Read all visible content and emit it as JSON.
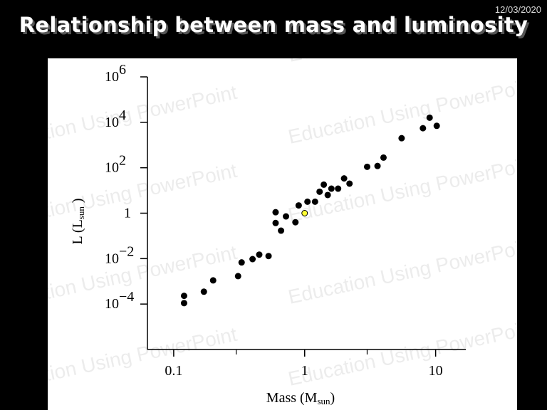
{
  "header": {
    "date": "12/03/2020",
    "title": "Relationship between mass and luminosity"
  },
  "watermark": "Education Using PowerPoint",
  "colors": {
    "background": "#000000",
    "panel": "#ffffff",
    "point": "#000000",
    "sun_point": "#ffff33"
  },
  "chart_data": {
    "type": "scatter",
    "xscale": "log",
    "yscale": "log",
    "xlim": [
      0.063,
      17
    ],
    "ylim": [
      1e-06,
      1000000
    ],
    "xlabel": {
      "main": "Mass  (M",
      "sub": "sun",
      "tail": ")"
    },
    "ylabel": {
      "main": "L  (L",
      "sub": "sun",
      "tail": " )"
    },
    "xticks": [
      {
        "value": 0.1,
        "label": "0.1"
      },
      {
        "value": 1,
        "label": "1"
      },
      {
        "value": 10,
        "label": "10"
      }
    ],
    "yticks": [
      {
        "value": 0.0001,
        "base": "10",
        "exp": "−4"
      },
      {
        "value": 0.01,
        "base": "10",
        "exp": "−2"
      },
      {
        "value": 1,
        "base": "1",
        "exp": ""
      },
      {
        "value": 100,
        "base": "10",
        "exp": "2"
      },
      {
        "value": 10000,
        "base": "10",
        "exp": "4"
      },
      {
        "value": 1000000,
        "base": "10",
        "exp": "6"
      }
    ],
    "grid": false,
    "series": [
      {
        "values": [
          {
            "x": 0.12,
            "y": 0.00023
          },
          {
            "x": 0.12,
            "y": 0.00011
          },
          {
            "x": 0.17,
            "y": 0.00035
          },
          {
            "x": 0.2,
            "y": 0.0011
          },
          {
            "x": 0.31,
            "y": 0.0017
          },
          {
            "x": 0.33,
            "y": 0.0068
          },
          {
            "x": 0.4,
            "y": 0.0095
          },
          {
            "x": 0.45,
            "y": 0.015
          },
          {
            "x": 0.53,
            "y": 0.013
          },
          {
            "x": 0.6,
            "y": 0.37
          },
          {
            "x": 0.6,
            "y": 1.1
          },
          {
            "x": 0.66,
            "y": 0.17
          },
          {
            "x": 0.72,
            "y": 0.72
          },
          {
            "x": 0.85,
            "y": 0.4
          },
          {
            "x": 0.9,
            "y": 2.2
          },
          {
            "x": 1.05,
            "y": 3.2
          },
          {
            "x": 1.2,
            "y": 3.2
          },
          {
            "x": 1.3,
            "y": 8.8
          },
          {
            "x": 1.4,
            "y": 18
          },
          {
            "x": 1.5,
            "y": 6.3
          },
          {
            "x": 1.6,
            "y": 12
          },
          {
            "x": 1.8,
            "y": 12
          },
          {
            "x": 2.0,
            "y": 34
          },
          {
            "x": 2.2,
            "y": 20
          },
          {
            "x": 3.0,
            "y": 110
          },
          {
            "x": 3.6,
            "y": 120
          },
          {
            "x": 4.0,
            "y": 280
          },
          {
            "x": 5.5,
            "y": 2000
          },
          {
            "x": 8.0,
            "y": 5500
          },
          {
            "x": 9.0,
            "y": 16000
          },
          {
            "x": 10.2,
            "y": 7000
          }
        ]
      },
      {
        "values": [
          {
            "x": 1.0,
            "y": 1.0
          }
        ]
      }
    ]
  }
}
